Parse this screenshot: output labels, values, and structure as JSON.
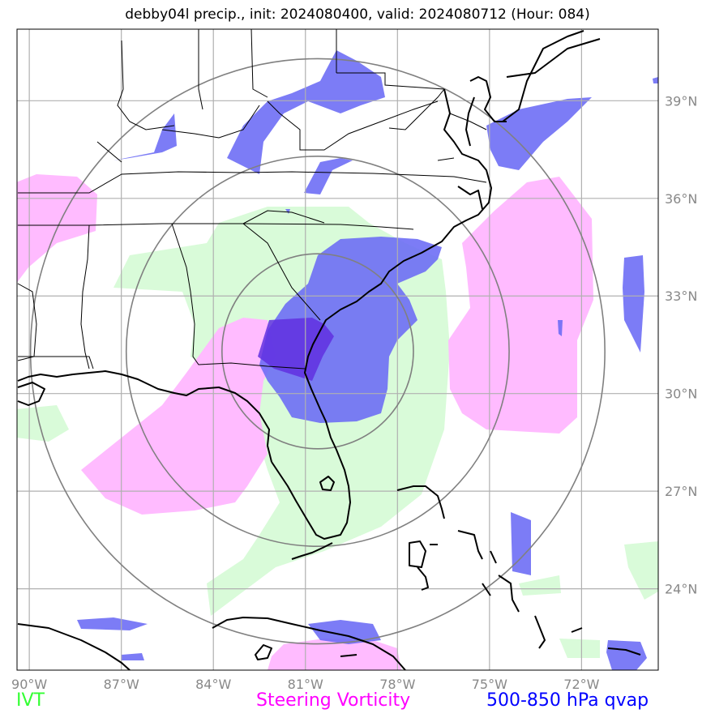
{
  "title": "debby04l precip., init: 2024080400, valid: 2024080712 (Hour: 084)",
  "map": {
    "extent": {
      "lon": [
        -90.4,
        -69.5
      ],
      "lat": [
        21.5,
        41.2
      ]
    },
    "lon_ticks": [
      -90,
      -87,
      -84,
      -81,
      -78,
      -75,
      -72
    ],
    "lon_labels": [
      "90°W",
      "87°W",
      "84°W",
      "81°W",
      "78°W",
      "75°W",
      "72°W"
    ],
    "lat_ticks": [
      24,
      27,
      30,
      33,
      36,
      39
    ],
    "lat_labels": [
      "24°N",
      "27°N",
      "30°N",
      "33°N",
      "36°N",
      "39°N"
    ],
    "storm_center": {
      "lon": -80.6,
      "lat": 31.3
    },
    "range_rings_deg": [
      3,
      6,
      9
    ],
    "colors": {
      "ivt": "#d9fbd9",
      "vorticity": "#ffbbff",
      "qvap": "#6a6af5",
      "grid": "#b0b0b0",
      "rings": "#808080",
      "coast": "#000000"
    }
  },
  "legend": {
    "ivt": "IVT",
    "vorticity": "Steering Vorticity",
    "qvap": "500-850 hPa qvap"
  }
}
